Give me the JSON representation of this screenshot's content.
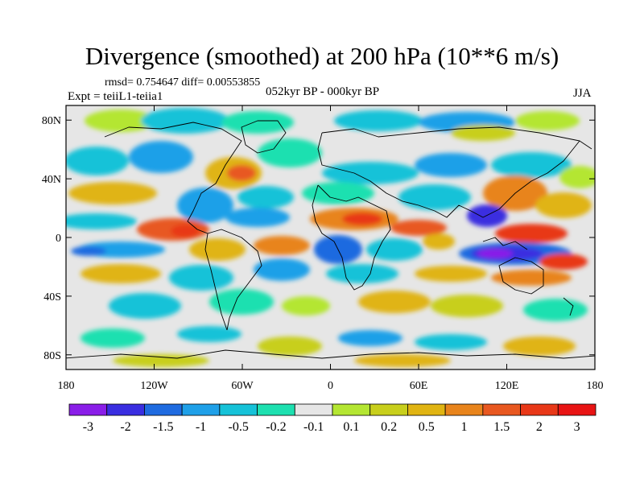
{
  "title": "Divergence (smoothed) at 200 hPa (10**6 m/s)",
  "stats_text": "rmsd= 0.754647 diff= 0.00553855",
  "experiment": "Expt = teiiL1-teiia1",
  "period": "052kyr BP - 000kyr BP",
  "season": "JJA",
  "map": {
    "lon_range": [
      -180,
      180
    ],
    "lat_range": [
      -90,
      90
    ],
    "x_ticks": [
      {
        "value": -180,
        "label": "180"
      },
      {
        "value": -120,
        "label": "120W"
      },
      {
        "value": -60,
        "label": "60W"
      },
      {
        "value": 0,
        "label": "0"
      },
      {
        "value": 60,
        "label": "60E"
      },
      {
        "value": 120,
        "label": "120E"
      },
      {
        "value": 180,
        "label": "180"
      }
    ],
    "y_ticks": [
      {
        "value": 80,
        "label": "80N"
      },
      {
        "value": 40,
        "label": "40N"
      },
      {
        "value": 0,
        "label": "0"
      },
      {
        "value": -40,
        "label": "40S"
      },
      {
        "value": -80,
        "label": "80S"
      }
    ]
  },
  "colorbar": {
    "levels": [
      "-3",
      "-2",
      "-1.5",
      "-1",
      "-0.5",
      "-0.2",
      "-0.1",
      "0.1",
      "0.2",
      "0.5",
      "1",
      "1.5",
      "2",
      "3"
    ],
    "colors": [
      "#8a1ee8",
      "#3a2ee0",
      "#1f6be0",
      "#1fa0e8",
      "#16c2d8",
      "#1ee0b0",
      "#e6e6e6",
      "#b4e632",
      "#c8cf1c",
      "#e0b412",
      "#e8841c",
      "#e85820",
      "#e83818",
      "#e81414"
    ]
  }
}
